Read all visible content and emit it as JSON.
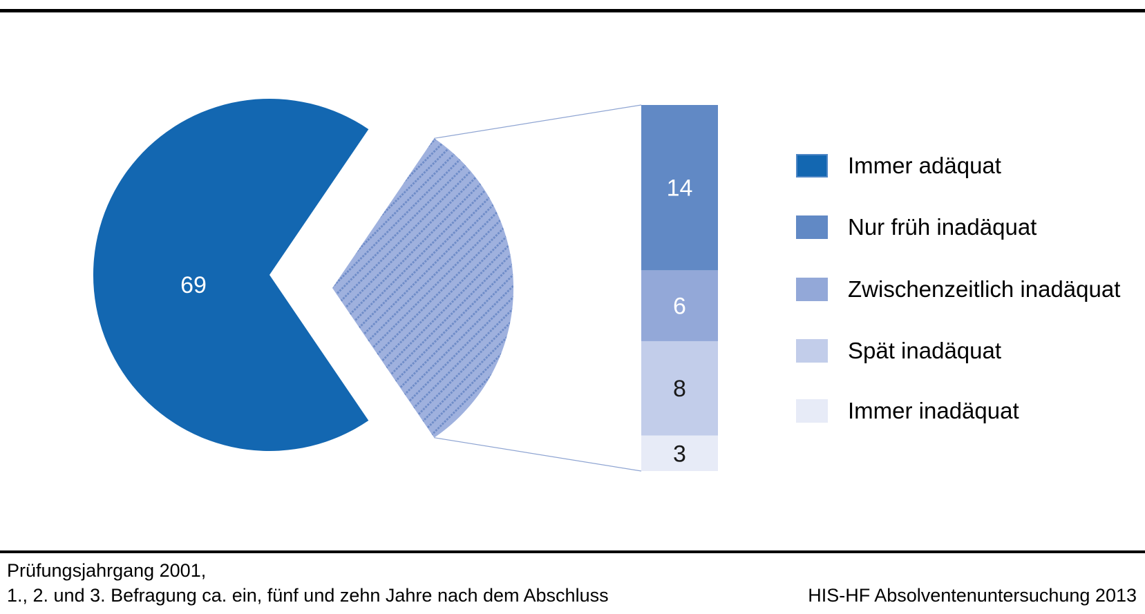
{
  "chart_data": {
    "type": "bar-of-pie",
    "title": "",
    "unit": "percent",
    "pie_slice": {
      "label": "Immer adäquat",
      "value": 69,
      "color": "#1367B1",
      "value_label_color": "#ffffff"
    },
    "breakout_slice": {
      "value": 31,
      "pattern": "diagonal-dotted-hatch",
      "background": "#9FB1DE",
      "stripe": "#6E8CC8"
    },
    "bar_segments": [
      {
        "label": "Nur früh inadäquat",
        "value": 14,
        "color": "#6189C5",
        "value_label_color": "#ffffff"
      },
      {
        "label": "Zwischenzeitlich inadäquat",
        "value": 6,
        "color": "#93A8D8",
        "value_label_color": "#ffffff"
      },
      {
        "label": "Spät inadäquat",
        "value": 8,
        "color": "#C2CDEA",
        "value_label_color": "#1a1a1a"
      },
      {
        "label": "Immer inadäquat",
        "value": 3,
        "color": "#E7EBF7",
        "value_label_color": "#1a1a1a"
      }
    ],
    "connector_color": "#8EA4D2",
    "legend_position": "right",
    "grid": false
  },
  "legend": {
    "items": [
      {
        "label": "Immer adäquat",
        "color": "#1367B1",
        "border": "#4E86C5"
      },
      {
        "label": "Nur früh inadäquat",
        "color": "#6189C5",
        "border": "#6189C5"
      },
      {
        "label": "Zwischenzeitlich inadäquat",
        "color": "#93A8D8",
        "border": "#93A8D8"
      },
      {
        "label": "Spät inadäquat",
        "color": "#C2CDEA",
        "border": "#C2CDEA"
      },
      {
        "label": "Immer inadäquat",
        "color": "#E7EBF7",
        "border": "#E7EBF7"
      }
    ]
  },
  "footer": {
    "left_line1": "Prüfungsjahrgang 2001,",
    "left_line2": "1., 2. und 3. Befragung ca. ein, fünf und zehn Jahre nach dem Abschluss",
    "right": "HIS-HF Absolventenuntersuchung 2013"
  }
}
